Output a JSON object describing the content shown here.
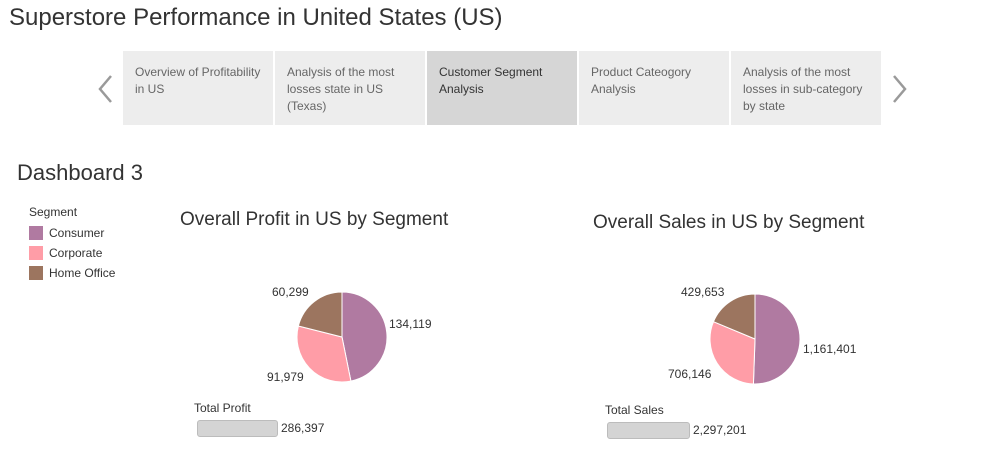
{
  "page_title": "Superstore Performance in United States (US)",
  "story_points": [
    {
      "label": "Overview of Profitability in US",
      "active": false
    },
    {
      "label": "Analysis of the most losses state in US (Texas)",
      "active": false
    },
    {
      "label": "Customer Segment Analysis",
      "active": true
    },
    {
      "label": "Product Cateogory Analysis",
      "active": false
    },
    {
      "label": "Analysis of the most losses in sub-category by state",
      "active": false
    }
  ],
  "dashboard_title": "Dashboard 3",
  "legend": {
    "title": "Segment",
    "items": [
      {
        "label": "Consumer",
        "color": "#b07aa1"
      },
      {
        "label": "Corporate",
        "color": "#ff9da7"
      },
      {
        "label": "Home Office",
        "color": "#9c755f"
      }
    ]
  },
  "chart_data": [
    {
      "type": "pie",
      "title": "Overall Profit in US by Segment",
      "categories": [
        "Consumer",
        "Corporate",
        "Home Office"
      ],
      "values": [
        134119,
        91979,
        60299
      ],
      "value_labels": [
        "134,119",
        "91,979",
        "60,299"
      ],
      "colors": [
        "#b07aa1",
        "#ff9da7",
        "#9c755f"
      ],
      "total_label": "Total Profit",
      "total_value": 286397,
      "total_value_label": "286,397"
    },
    {
      "type": "pie",
      "title": "Overall Sales in US by Segment",
      "categories": [
        "Consumer",
        "Corporate",
        "Home Office"
      ],
      "values": [
        1161401,
        706146,
        429653
      ],
      "value_labels": [
        "1,161,401",
        "706,146",
        "429,653"
      ],
      "colors": [
        "#b07aa1",
        "#ff9da7",
        "#9c755f"
      ],
      "total_label": "Total Sales",
      "total_value": 2297201,
      "total_value_label": "2,297,201"
    }
  ]
}
